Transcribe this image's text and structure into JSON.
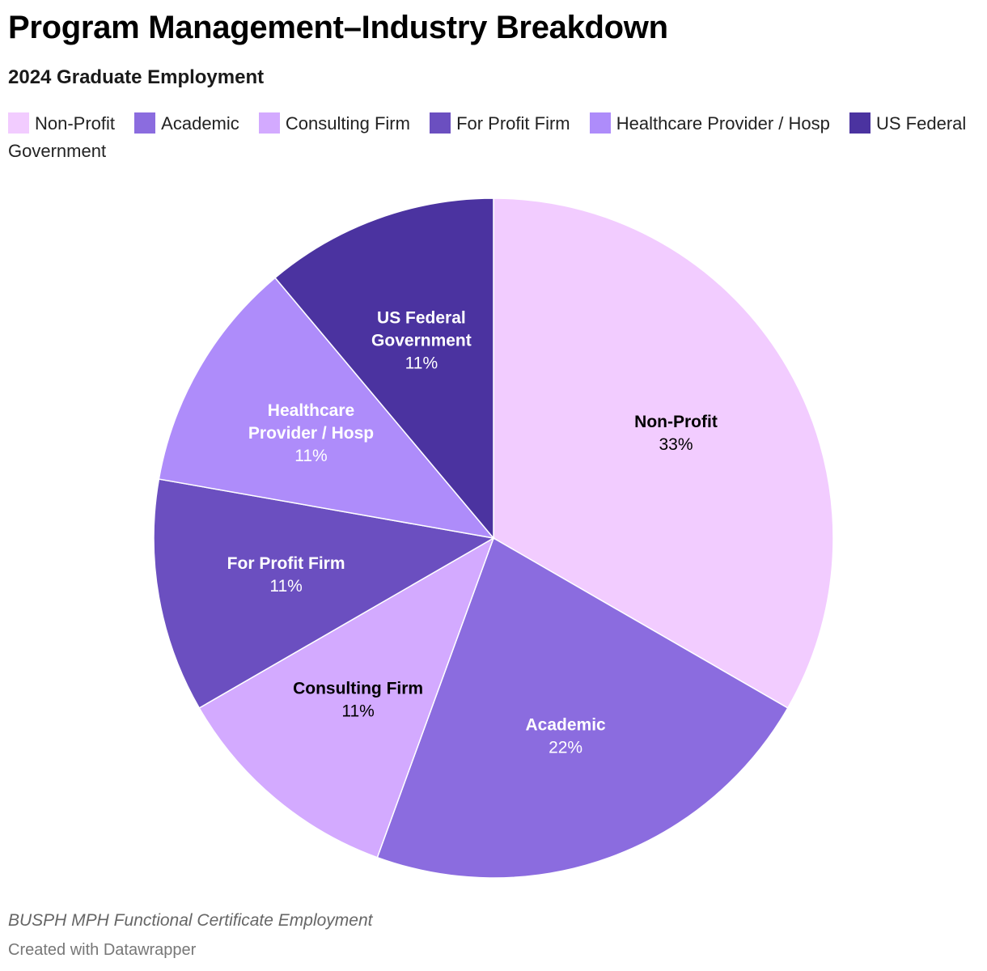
{
  "title": "Program Management–Industry Breakdown",
  "subtitle": "2024 Graduate Employment",
  "source": "BUSPH MPH Functional Certificate Employment",
  "credit": "Created with Datawrapper",
  "legend": [
    {
      "label": "Non-Profit",
      "color": "#f2ccff"
    },
    {
      "label": "Academic",
      "color": "#8b6cdf"
    },
    {
      "label": "Consulting Firm",
      "color": "#d3aaff"
    },
    {
      "label": "For Profit Firm",
      "color": "#6b4fc0"
    },
    {
      "label": "Healthcare Provider / Hosp",
      "color": "#ae8cfa"
    },
    {
      "label": "US Federal Government",
      "color": "#4b33a0"
    }
  ],
  "chart_data": {
    "type": "pie",
    "categories": [
      "Non-Profit",
      "Academic",
      "Consulting Firm",
      "For Profit Firm",
      "Healthcare Provider / Hosp",
      "US Federal Government"
    ],
    "values": [
      33.33,
      22.22,
      11.11,
      11.11,
      11.11,
      11.11
    ],
    "slice_labels": [
      {
        "name_lines": [
          "Non-Profit"
        ],
        "percent": "33%",
        "text_color": "#000000"
      },
      {
        "name_lines": [
          "Academic"
        ],
        "percent": "22%",
        "text_color": "#ffffff"
      },
      {
        "name_lines": [
          "Consulting Firm"
        ],
        "percent": "11%",
        "text_color": "#000000"
      },
      {
        "name_lines": [
          "For Profit Firm"
        ],
        "percent": "11%",
        "text_color": "#ffffff"
      },
      {
        "name_lines": [
          "Healthcare",
          "Provider / Hosp"
        ],
        "percent": "11%",
        "text_color": "#ffffff"
      },
      {
        "name_lines": [
          "US Federal",
          "Government"
        ],
        "percent": "11%",
        "text_color": "#ffffff"
      }
    ],
    "colors": [
      "#f2ccff",
      "#8b6cdf",
      "#d3aaff",
      "#6b4fc0",
      "#ae8cfa",
      "#4b33a0"
    ],
    "start": "12 o'clock",
    "direction": "clockwise"
  }
}
